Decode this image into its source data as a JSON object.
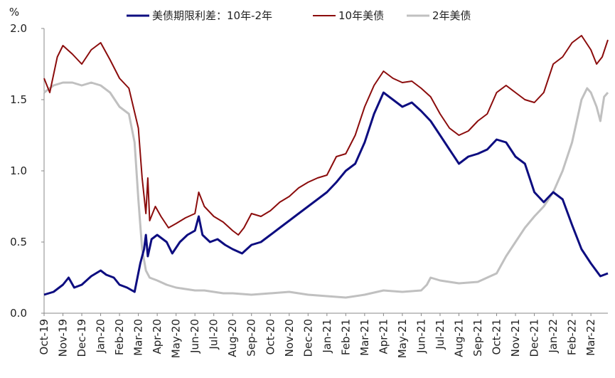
{
  "chart_data": {
    "type": "line",
    "title": "",
    "unit_label": "%",
    "ylim": [
      0.0,
      2.0
    ],
    "yticks": [
      "0.0",
      "0.5",
      "1.0",
      "1.5",
      "2.0"
    ],
    "ytick_values": [
      0.0,
      0.5,
      1.0,
      1.5,
      2.0
    ],
    "grid": false,
    "legend_position": "top",
    "categories": [
      "Oct-19",
      "Nov-19",
      "Dec-19",
      "Jan-20",
      "Feb-20",
      "Mar-20",
      "Apr-20",
      "May-20",
      "Jun-20",
      "Jul-20",
      "Aug-20",
      "Sep-20",
      "Oct-20",
      "Nov-20",
      "Dec-20",
      "Jan-21",
      "Feb-21",
      "Mar-21",
      "Apr-21",
      "May-21",
      "Jun-21",
      "Jul-21",
      "Aug-21",
      "Sep-21",
      "Oct-21",
      "Nov-21",
      "Dec-21",
      "Jan-22",
      "Feb-22",
      "Mar-22"
    ],
    "x_end": 29.9,
    "series": [
      {
        "name": "美债期限利差：10年-2年",
        "color": "#0d0d80",
        "width": 3,
        "points": [
          [
            0,
            0.13
          ],
          [
            0.5,
            0.15
          ],
          [
            1,
            0.2
          ],
          [
            1.3,
            0.25
          ],
          [
            1.6,
            0.18
          ],
          [
            2,
            0.2
          ],
          [
            2.5,
            0.26
          ],
          [
            3,
            0.3
          ],
          [
            3.3,
            0.27
          ],
          [
            3.7,
            0.25
          ],
          [
            4,
            0.2
          ],
          [
            4.4,
            0.18
          ],
          [
            4.8,
            0.15
          ],
          [
            5.1,
            0.35
          ],
          [
            5.3,
            0.45
          ],
          [
            5.4,
            0.55
          ],
          [
            5.5,
            0.4
          ],
          [
            5.7,
            0.52
          ],
          [
            6,
            0.55
          ],
          [
            6.5,
            0.5
          ],
          [
            6.8,
            0.42
          ],
          [
            7.2,
            0.5
          ],
          [
            7.6,
            0.55
          ],
          [
            8,
            0.58
          ],
          [
            8.2,
            0.68
          ],
          [
            8.4,
            0.55
          ],
          [
            8.8,
            0.5
          ],
          [
            9.2,
            0.52
          ],
          [
            9.6,
            0.48
          ],
          [
            10,
            0.45
          ],
          [
            10.5,
            0.42
          ],
          [
            11,
            0.48
          ],
          [
            11.5,
            0.5
          ],
          [
            12,
            0.55
          ],
          [
            12.5,
            0.6
          ],
          [
            13,
            0.65
          ],
          [
            13.5,
            0.7
          ],
          [
            14,
            0.75
          ],
          [
            14.5,
            0.8
          ],
          [
            15,
            0.85
          ],
          [
            15.5,
            0.92
          ],
          [
            16,
            1.0
          ],
          [
            16.5,
            1.05
          ],
          [
            17,
            1.2
          ],
          [
            17.5,
            1.4
          ],
          [
            18,
            1.55
          ],
          [
            18.5,
            1.5
          ],
          [
            19,
            1.45
          ],
          [
            19.5,
            1.48
          ],
          [
            20,
            1.42
          ],
          [
            20.5,
            1.35
          ],
          [
            21,
            1.25
          ],
          [
            21.5,
            1.15
          ],
          [
            22,
            1.05
          ],
          [
            22.5,
            1.1
          ],
          [
            23,
            1.12
          ],
          [
            23.5,
            1.15
          ],
          [
            24,
            1.22
          ],
          [
            24.5,
            1.2
          ],
          [
            25,
            1.1
          ],
          [
            25.5,
            1.05
          ],
          [
            26,
            0.85
          ],
          [
            26.5,
            0.78
          ],
          [
            27,
            0.85
          ],
          [
            27.5,
            0.8
          ],
          [
            28,
            0.62
          ],
          [
            28.5,
            0.45
          ],
          [
            29,
            0.35
          ],
          [
            29.5,
            0.26
          ],
          [
            29.9,
            0.28
          ]
        ]
      },
      {
        "name": "10年美债",
        "color": "#8b0c0c",
        "width": 2,
        "points": [
          [
            0,
            1.65
          ],
          [
            0.3,
            1.55
          ],
          [
            0.7,
            1.8
          ],
          [
            1,
            1.88
          ],
          [
            1.5,
            1.82
          ],
          [
            2,
            1.75
          ],
          [
            2.5,
            1.85
          ],
          [
            3,
            1.9
          ],
          [
            3.5,
            1.78
          ],
          [
            4,
            1.65
          ],
          [
            4.5,
            1.58
          ],
          [
            5,
            1.3
          ],
          [
            5.2,
            0.95
          ],
          [
            5.4,
            0.7
          ],
          [
            5.5,
            0.95
          ],
          [
            5.6,
            0.65
          ],
          [
            5.9,
            0.75
          ],
          [
            6.2,
            0.68
          ],
          [
            6.6,
            0.6
          ],
          [
            7,
            0.63
          ],
          [
            7.5,
            0.67
          ],
          [
            8,
            0.7
          ],
          [
            8.2,
            0.85
          ],
          [
            8.5,
            0.75
          ],
          [
            9,
            0.68
          ],
          [
            9.5,
            0.64
          ],
          [
            10,
            0.58
          ],
          [
            10.3,
            0.55
          ],
          [
            10.6,
            0.6
          ],
          [
            11,
            0.7
          ],
          [
            11.5,
            0.68
          ],
          [
            12,
            0.72
          ],
          [
            12.5,
            0.78
          ],
          [
            13,
            0.82
          ],
          [
            13.5,
            0.88
          ],
          [
            14,
            0.92
          ],
          [
            14.5,
            0.95
          ],
          [
            15,
            0.97
          ],
          [
            15.5,
            1.1
          ],
          [
            16,
            1.12
          ],
          [
            16.5,
            1.25
          ],
          [
            17,
            1.45
          ],
          [
            17.5,
            1.6
          ],
          [
            18,
            1.7
          ],
          [
            18.5,
            1.65
          ],
          [
            19,
            1.62
          ],
          [
            19.5,
            1.63
          ],
          [
            20,
            1.58
          ],
          [
            20.5,
            1.52
          ],
          [
            21,
            1.4
          ],
          [
            21.5,
            1.3
          ],
          [
            22,
            1.25
          ],
          [
            22.5,
            1.28
          ],
          [
            23,
            1.35
          ],
          [
            23.5,
            1.4
          ],
          [
            24,
            1.55
          ],
          [
            24.5,
            1.6
          ],
          [
            25,
            1.55
          ],
          [
            25.5,
            1.5
          ],
          [
            26,
            1.48
          ],
          [
            26.5,
            1.55
          ],
          [
            27,
            1.75
          ],
          [
            27.5,
            1.8
          ],
          [
            28,
            1.9
          ],
          [
            28.5,
            1.95
          ],
          [
            29,
            1.85
          ],
          [
            29.3,
            1.75
          ],
          [
            29.6,
            1.8
          ],
          [
            29.9,
            1.92
          ]
        ]
      },
      {
        "name": "2年美债",
        "color": "#c0c0c0",
        "width": 3,
        "points": [
          [
            0,
            1.55
          ],
          [
            0.5,
            1.6
          ],
          [
            1,
            1.62
          ],
          [
            1.5,
            1.62
          ],
          [
            2,
            1.6
          ],
          [
            2.5,
            1.62
          ],
          [
            3,
            1.6
          ],
          [
            3.5,
            1.55
          ],
          [
            4,
            1.45
          ],
          [
            4.5,
            1.4
          ],
          [
            4.8,
            1.2
          ],
          [
            5,
            0.8
          ],
          [
            5.2,
            0.45
          ],
          [
            5.4,
            0.3
          ],
          [
            5.6,
            0.25
          ],
          [
            6,
            0.23
          ],
          [
            6.5,
            0.2
          ],
          [
            7,
            0.18
          ],
          [
            7.5,
            0.17
          ],
          [
            8,
            0.16
          ],
          [
            8.5,
            0.16
          ],
          [
            9,
            0.15
          ],
          [
            9.5,
            0.14
          ],
          [
            10,
            0.14
          ],
          [
            11,
            0.13
          ],
          [
            12,
            0.14
          ],
          [
            13,
            0.15
          ],
          [
            14,
            0.13
          ],
          [
            15,
            0.12
          ],
          [
            16,
            0.11
          ],
          [
            17,
            0.13
          ],
          [
            18,
            0.16
          ],
          [
            19,
            0.15
          ],
          [
            20,
            0.16
          ],
          [
            20.3,
            0.2
          ],
          [
            20.5,
            0.25
          ],
          [
            21,
            0.23
          ],
          [
            21.5,
            0.22
          ],
          [
            22,
            0.21
          ],
          [
            23,
            0.22
          ],
          [
            24,
            0.28
          ],
          [
            24.5,
            0.4
          ],
          [
            25,
            0.5
          ],
          [
            25.5,
            0.6
          ],
          [
            26,
            0.68
          ],
          [
            26.5,
            0.75
          ],
          [
            27,
            0.85
          ],
          [
            27.5,
            1.0
          ],
          [
            28,
            1.2
          ],
          [
            28.3,
            1.38
          ],
          [
            28.5,
            1.5
          ],
          [
            28.8,
            1.58
          ],
          [
            29,
            1.55
          ],
          [
            29.3,
            1.45
          ],
          [
            29.5,
            1.35
          ],
          [
            29.7,
            1.52
          ],
          [
            29.9,
            1.55
          ]
        ]
      }
    ]
  }
}
